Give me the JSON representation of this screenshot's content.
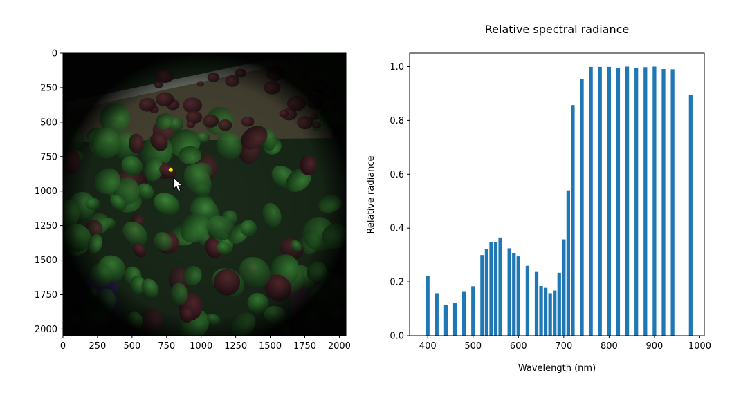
{
  "chart_data": [
    {
      "type": "image",
      "title": "",
      "xlabel": "",
      "ylabel": "",
      "xlim": [
        0,
        2048
      ],
      "ylim": [
        2048,
        0
      ],
      "xticks": [
        0,
        250,
        500,
        750,
        1000,
        1250,
        1500,
        1750,
        2000
      ],
      "yticks": [
        0,
        250,
        500,
        750,
        1000,
        1250,
        1500,
        1750,
        2000
      ],
      "image_description": "multispectral false-colour image of plant leaves in a circular field of view",
      "marker": {
        "x": 780,
        "y": 845,
        "color": "#e8e800"
      },
      "cursor": {
        "x": 800,
        "y": 900
      }
    },
    {
      "type": "bar",
      "title": "Relative spectral radiance",
      "xlabel": "Wavelength (nm)",
      "ylabel": "Relative radiance",
      "xlim": [
        360,
        1010
      ],
      "ylim": [
        0,
        1.05
      ],
      "xticks": [
        400,
        500,
        600,
        700,
        800,
        900,
        1000
      ],
      "yticks": [
        0.0,
        0.2,
        0.4,
        0.6,
        0.8,
        1.0
      ],
      "bar_color": "#1f77b4",
      "grid": false,
      "bar_width_nm": 8,
      "x": [
        400,
        420,
        440,
        460,
        480,
        500,
        520,
        530,
        540,
        550,
        560,
        580,
        590,
        600,
        620,
        640,
        650,
        660,
        670,
        680,
        690,
        700,
        710,
        720,
        740,
        760,
        780,
        800,
        820,
        840,
        860,
        880,
        900,
        920,
        940,
        980
      ],
      "values": [
        0.222,
        0.158,
        0.114,
        0.122,
        0.163,
        0.184,
        0.3,
        0.322,
        0.347,
        0.347,
        0.365,
        0.325,
        0.308,
        0.295,
        0.26,
        0.237,
        0.185,
        0.178,
        0.158,
        0.168,
        0.234,
        0.358,
        0.54,
        0.857,
        0.953,
        0.999,
        0.999,
        0.999,
        0.996,
        1.0,
        0.995,
        0.998,
        1.0,
        0.991,
        0.99,
        0.896
      ]
    }
  ]
}
